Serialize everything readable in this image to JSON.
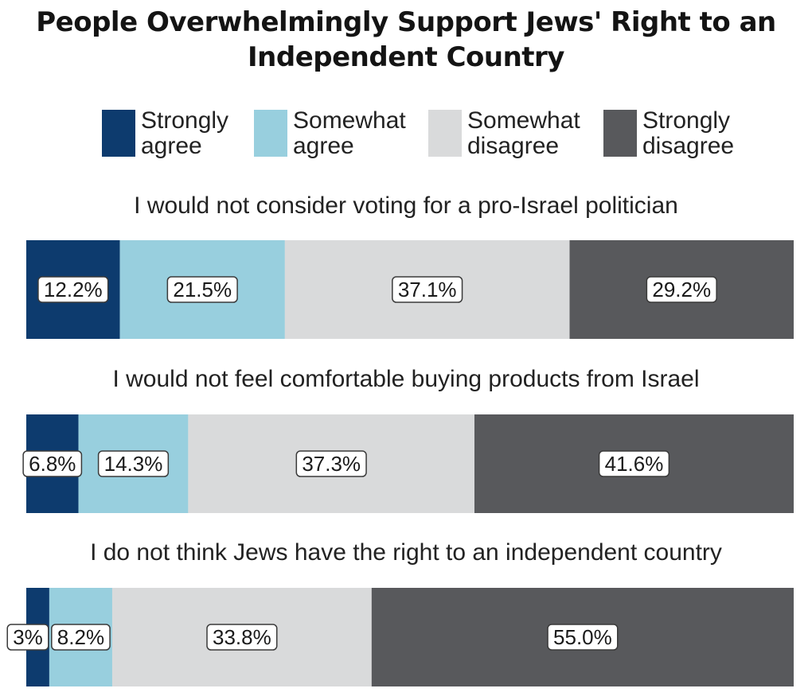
{
  "chart_data": {
    "type": "bar",
    "stacked": true,
    "orientation": "horizontal",
    "title_lines": [
      "People Overwhelmingly Support Jews' Right to an",
      "Independent Country"
    ],
    "legend": [
      "Strongly\nagree",
      "Somewhat\nagree",
      "Somewhat\ndisagree",
      "Strongly\ndisagree"
    ],
    "legend_placement": "top",
    "categories": [
      "I would not consider voting for a pro-Israel politician",
      "I would not feel comfortable buying products from Israel",
      "I do not think Jews have the right to an independent country"
    ],
    "series": [
      {
        "name": "Strongly agree",
        "values": [
          12.2,
          6.8,
          3.0
        ],
        "labels": [
          "12.2%",
          "6.8%",
          "3%"
        ],
        "color": "#0d3b6e"
      },
      {
        "name": "Somewhat agree",
        "values": [
          21.5,
          14.3,
          8.2
        ],
        "labels": [
          "21.5%",
          "14.3%",
          "8.2%"
        ],
        "color": "#98cfde"
      },
      {
        "name": "Somewhat disagree",
        "values": [
          37.1,
          37.3,
          33.8
        ],
        "labels": [
          "37.1%",
          "37.3%",
          "33.8%"
        ],
        "color": "#d9dadb"
      },
      {
        "name": "Strongly disagree",
        "values": [
          29.2,
          41.6,
          55.0
        ],
        "labels": [
          "29.2%",
          "41.6%",
          "55.0%"
        ],
        "color": "#58595c"
      }
    ],
    "xlim": [
      0,
      100
    ],
    "grid": false
  }
}
